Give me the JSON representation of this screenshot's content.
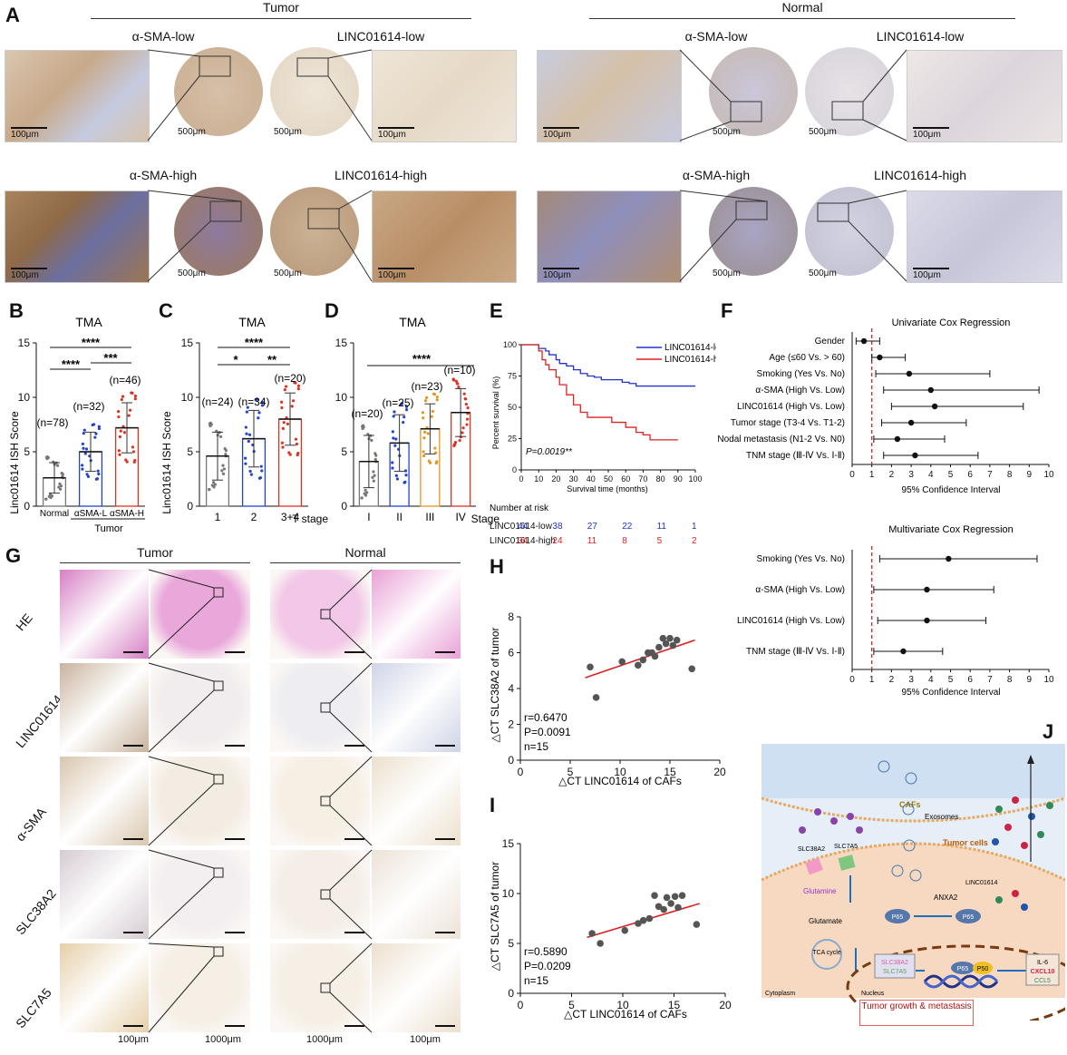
{
  "panelA": {
    "label": "A",
    "group_tumor": "Tumor",
    "group_normal": "Normal",
    "titles": {
      "asma_low": "α-SMA-low",
      "linc_low": "LINC01614-low",
      "asma_high": "α-SMA-high",
      "linc_high": "LINC01614-high"
    },
    "scale_100": "100μm",
    "scale_500": "500μm"
  },
  "panelB": {
    "label": "B",
    "title": "TMA",
    "ylabel": "Linc01614 ISH Score",
    "sig_top": "****",
    "sig_left": "****",
    "sig_right": "***",
    "n_labels": [
      "(n=78)",
      "(n=32)",
      "(n=46)"
    ],
    "xgroup": "Tumor"
  },
  "panelC": {
    "label": "C",
    "title": "TMA",
    "ylabel": "Linc01614 ISH Score",
    "sig_top": "****",
    "sig_a": "*",
    "sig_b": "**",
    "n_labels": [
      "(n=24)",
      "(n=34)",
      "(n=20)"
    ],
    "xtitle": "T stage"
  },
  "panelD": {
    "label": "D",
    "title": "TMA",
    "sig_top": "****",
    "n_labels": [
      "(n=20)",
      "(n=25)",
      "(n=23)",
      "(n=10)"
    ],
    "xtitle": "Stage"
  },
  "panelE": {
    "label": "E",
    "ylabel": "Percent survival (%)",
    "xlabel": "Survival time (months)",
    "pvalue": "P=0.0019**",
    "legend_low": "LINC01614-low",
    "legend_high": "LINC01614-high",
    "risk_title": "Number at risk",
    "risk_low_label": "LINC01614-low",
    "risk_high_label": "LINC01614-high",
    "risk_low": [
      "44",
      "38",
      "27",
      "22",
      "11",
      "1"
    ],
    "risk_high": [
      "34",
      "24",
      "11",
      "8",
      "5",
      "2"
    ]
  },
  "panelF": {
    "label": "F",
    "xlabel": "95% Confidence Interval",
    "uni_title": "Univariate Cox Regression",
    "multi_title": "Multivariate Cox Regression"
  },
  "panelG": {
    "label": "G",
    "group_tumor": "Tumor",
    "group_normal": "Normal",
    "rows": [
      "HE",
      "LINC01614",
      "α-SMA",
      "SLC38A2",
      "SLC7A5"
    ],
    "scale_100": "100μm",
    "scale_1000": "1000μm"
  },
  "panelH": {
    "label": "H",
    "ylabel": "△CT SLC38A2 of tumor",
    "xlabel": "△CT LINC01614 of CAFs",
    "r": "r=0.6470",
    "p": "P=0.0091",
    "n": "n=15"
  },
  "panelI": {
    "label": "I",
    "ylabel": "△CT SLC7A5 of tumor",
    "xlabel": "△CT LINC01614 of CAFs",
    "r": "r=0.5890",
    "p": "P=0.0209",
    "n": "n=15"
  },
  "panelJ": {
    "label": "J",
    "cafs": "CAFs",
    "exosomes": "Exosomes",
    "tumor_cells": "Tumor cells",
    "slc38a2": "SLC38A2",
    "slc7a5": "SLC7A5",
    "glutamine": "Glutamine",
    "glutamate": "Glutamate",
    "tca": "TCA cycle",
    "anxa2": "ANXA2",
    "linc": "LINC01614",
    "p65": "P65",
    "p50": "P50",
    "il6": "IL-6",
    "cxcl10": "CXCL10",
    "ccl5": "CCL5",
    "cytoplasm": "Cytoplasm",
    "nucleus": "Nucleus",
    "outcome": "Tumor growth & metastasis"
  },
  "chart_data": [
    {
      "type": "bar",
      "panel": "B",
      "categories": [
        "Normal",
        "αSMA-L",
        "αSMA-H"
      ],
      "values": [
        2.6,
        5.0,
        7.2
      ],
      "errors": [
        1.4,
        1.8,
        2.3
      ],
      "ylim": [
        0,
        15
      ],
      "yticks": [
        0,
        5,
        10,
        15
      ],
      "title": "TMA",
      "ylabel": "Linc01614 ISH Score",
      "xlabel": ""
    },
    {
      "type": "bar",
      "panel": "C",
      "categories": [
        "1",
        "2",
        "3+4"
      ],
      "values": [
        4.6,
        6.2,
        8.0
      ],
      "errors": [
        2.2,
        2.6,
        2.4
      ],
      "ylim": [
        0,
        15
      ],
      "yticks": [
        0,
        5,
        10,
        15
      ],
      "title": "TMA",
      "ylabel": "Linc01614 ISH Score",
      "xlabel": "T stage"
    },
    {
      "type": "bar",
      "panel": "D",
      "categories": [
        "I",
        "II",
        "III",
        "IV"
      ],
      "values": [
        4.1,
        5.8,
        7.1,
        8.6
      ],
      "errors": [
        2.4,
        2.6,
        2.3,
        2.2
      ],
      "ylim": [
        0,
        15
      ],
      "yticks": [
        0,
        5,
        10,
        15
      ],
      "title": "TMA",
      "xlabel": "Stage"
    },
    {
      "type": "line",
      "panel": "E",
      "xlim": [
        0,
        100
      ],
      "ylim": [
        0,
        100
      ],
      "xticks": [
        0,
        10,
        20,
        30,
        40,
        50,
        60,
        70,
        80,
        90,
        100
      ],
      "yticks": [
        0,
        25,
        50,
        75,
        100
      ],
      "series": [
        {
          "name": "LINC01614-low",
          "x": [
            0,
            8,
            10,
            14,
            16,
            20,
            22,
            26,
            30,
            34,
            38,
            42,
            46,
            52,
            58,
            62,
            66,
            72,
            100
          ],
          "y": [
            100,
            100,
            97,
            95,
            92,
            88,
            85,
            83,
            80,
            77,
            75,
            74,
            72,
            72,
            70,
            69,
            67,
            67,
            67
          ]
        },
        {
          "name": "LINC01614-high",
          "x": [
            0,
            8,
            10,
            12,
            14,
            16,
            20,
            22,
            26,
            30,
            34,
            38,
            44,
            52,
            60,
            66,
            70,
            74,
            90
          ],
          "y": [
            100,
            100,
            95,
            88,
            84,
            80,
            74,
            68,
            60,
            52,
            46,
            42,
            42,
            38,
            34,
            30,
            28,
            24,
            24
          ]
        }
      ]
    },
    {
      "type": "scatter",
      "panel": "F-univariate",
      "xlim": [
        0,
        10
      ],
      "xticks": [
        0,
        1,
        2,
        3,
        4,
        5,
        6,
        7,
        8,
        9,
        10
      ],
      "reference": 1,
      "rows": [
        {
          "label": "Gender",
          "hr": 0.6,
          "low": 0.2,
          "high": 1.4
        },
        {
          "label": "Age (≤60 Vs. > 60)",
          "hr": 1.4,
          "low": 1.0,
          "high": 2.7
        },
        {
          "label": "Smoking (Yes Vs. No)",
          "hr": 2.9,
          "low": 1.2,
          "high": 7.0
        },
        {
          "label": "α-SMA (High Vs. Low)",
          "hr": 4.0,
          "low": 1.6,
          "high": 9.5
        },
        {
          "label": "LINC01614 (High Vs. Low)",
          "hr": 4.2,
          "low": 2.0,
          "high": 8.7
        },
        {
          "label": "Tumor stage (T3-4 Vs. T1-2)",
          "hr": 3.0,
          "low": 1.5,
          "high": 5.8
        },
        {
          "label": "Nodal metastasis (N1-2 Vs. N0)",
          "hr": 2.3,
          "low": 1.1,
          "high": 4.7
        },
        {
          "label": "TNM stage (Ⅲ-Ⅳ Vs. Ⅰ-Ⅱ)",
          "hr": 3.2,
          "low": 1.6,
          "high": 6.4
        }
      ]
    },
    {
      "type": "scatter",
      "panel": "F-multivariate",
      "xlim": [
        0,
        10
      ],
      "xticks": [
        0,
        1,
        2,
        3,
        4,
        5,
        6,
        7,
        8,
        9,
        10
      ],
      "reference": 1,
      "rows": [
        {
          "label": "Smoking (Yes Vs. No)",
          "hr": 4.9,
          "low": 1.4,
          "high": 9.4
        },
        {
          "label": "α-SMA (High Vs. Low)",
          "hr": 3.8,
          "low": 1.1,
          "high": 7.2
        },
        {
          "label": "LINC01614 (High Vs. Low)",
          "hr": 3.8,
          "low": 1.3,
          "high": 6.8
        },
        {
          "label": "TNM stage (Ⅲ-Ⅳ Vs. Ⅰ-Ⅱ)",
          "hr": 2.6,
          "low": 1.1,
          "high": 4.6
        }
      ]
    },
    {
      "type": "scatter",
      "panel": "H",
      "xlim": [
        0,
        20
      ],
      "ylim": [
        0,
        8
      ],
      "xticks": [
        0,
        5,
        10,
        15,
        20
      ],
      "yticks": [
        0,
        2,
        4,
        6,
        8
      ],
      "x": [
        7.0,
        7.6,
        10.2,
        11.8,
        12.3,
        12.8,
        13.2,
        13.5,
        13.9,
        14.3,
        14.6,
        15.0,
        15.3,
        15.7,
        17.2
      ],
      "y": [
        5.2,
        3.5,
        5.5,
        5.3,
        5.6,
        6.0,
        6.0,
        5.8,
        6.3,
        6.8,
        6.5,
        6.8,
        6.4,
        6.7,
        5.1
      ],
      "fit": {
        "x": [
          6.5,
          17.5
        ],
        "y": [
          4.6,
          6.7
        ]
      }
    },
    {
      "type": "scatter",
      "panel": "I",
      "xlim": [
        0,
        20
      ],
      "ylim": [
        0,
        15
      ],
      "xticks": [
        0,
        5,
        10,
        15,
        20
      ],
      "yticks": [
        0,
        5,
        10,
        15
      ],
      "x": [
        7.0,
        7.8,
        10.2,
        11.5,
        12.0,
        12.6,
        13.1,
        13.5,
        14.0,
        14.3,
        14.7,
        15.1,
        15.4,
        15.8,
        17.2
      ],
      "y": [
        6.0,
        5.0,
        6.3,
        7.0,
        7.3,
        7.5,
        9.8,
        8.7,
        8.4,
        9.6,
        9.0,
        9.7,
        8.6,
        9.8,
        6.9
      ],
      "fit": {
        "x": [
          6.5,
          17.5
        ],
        "y": [
          5.6,
          9.0
        ]
      }
    }
  ]
}
